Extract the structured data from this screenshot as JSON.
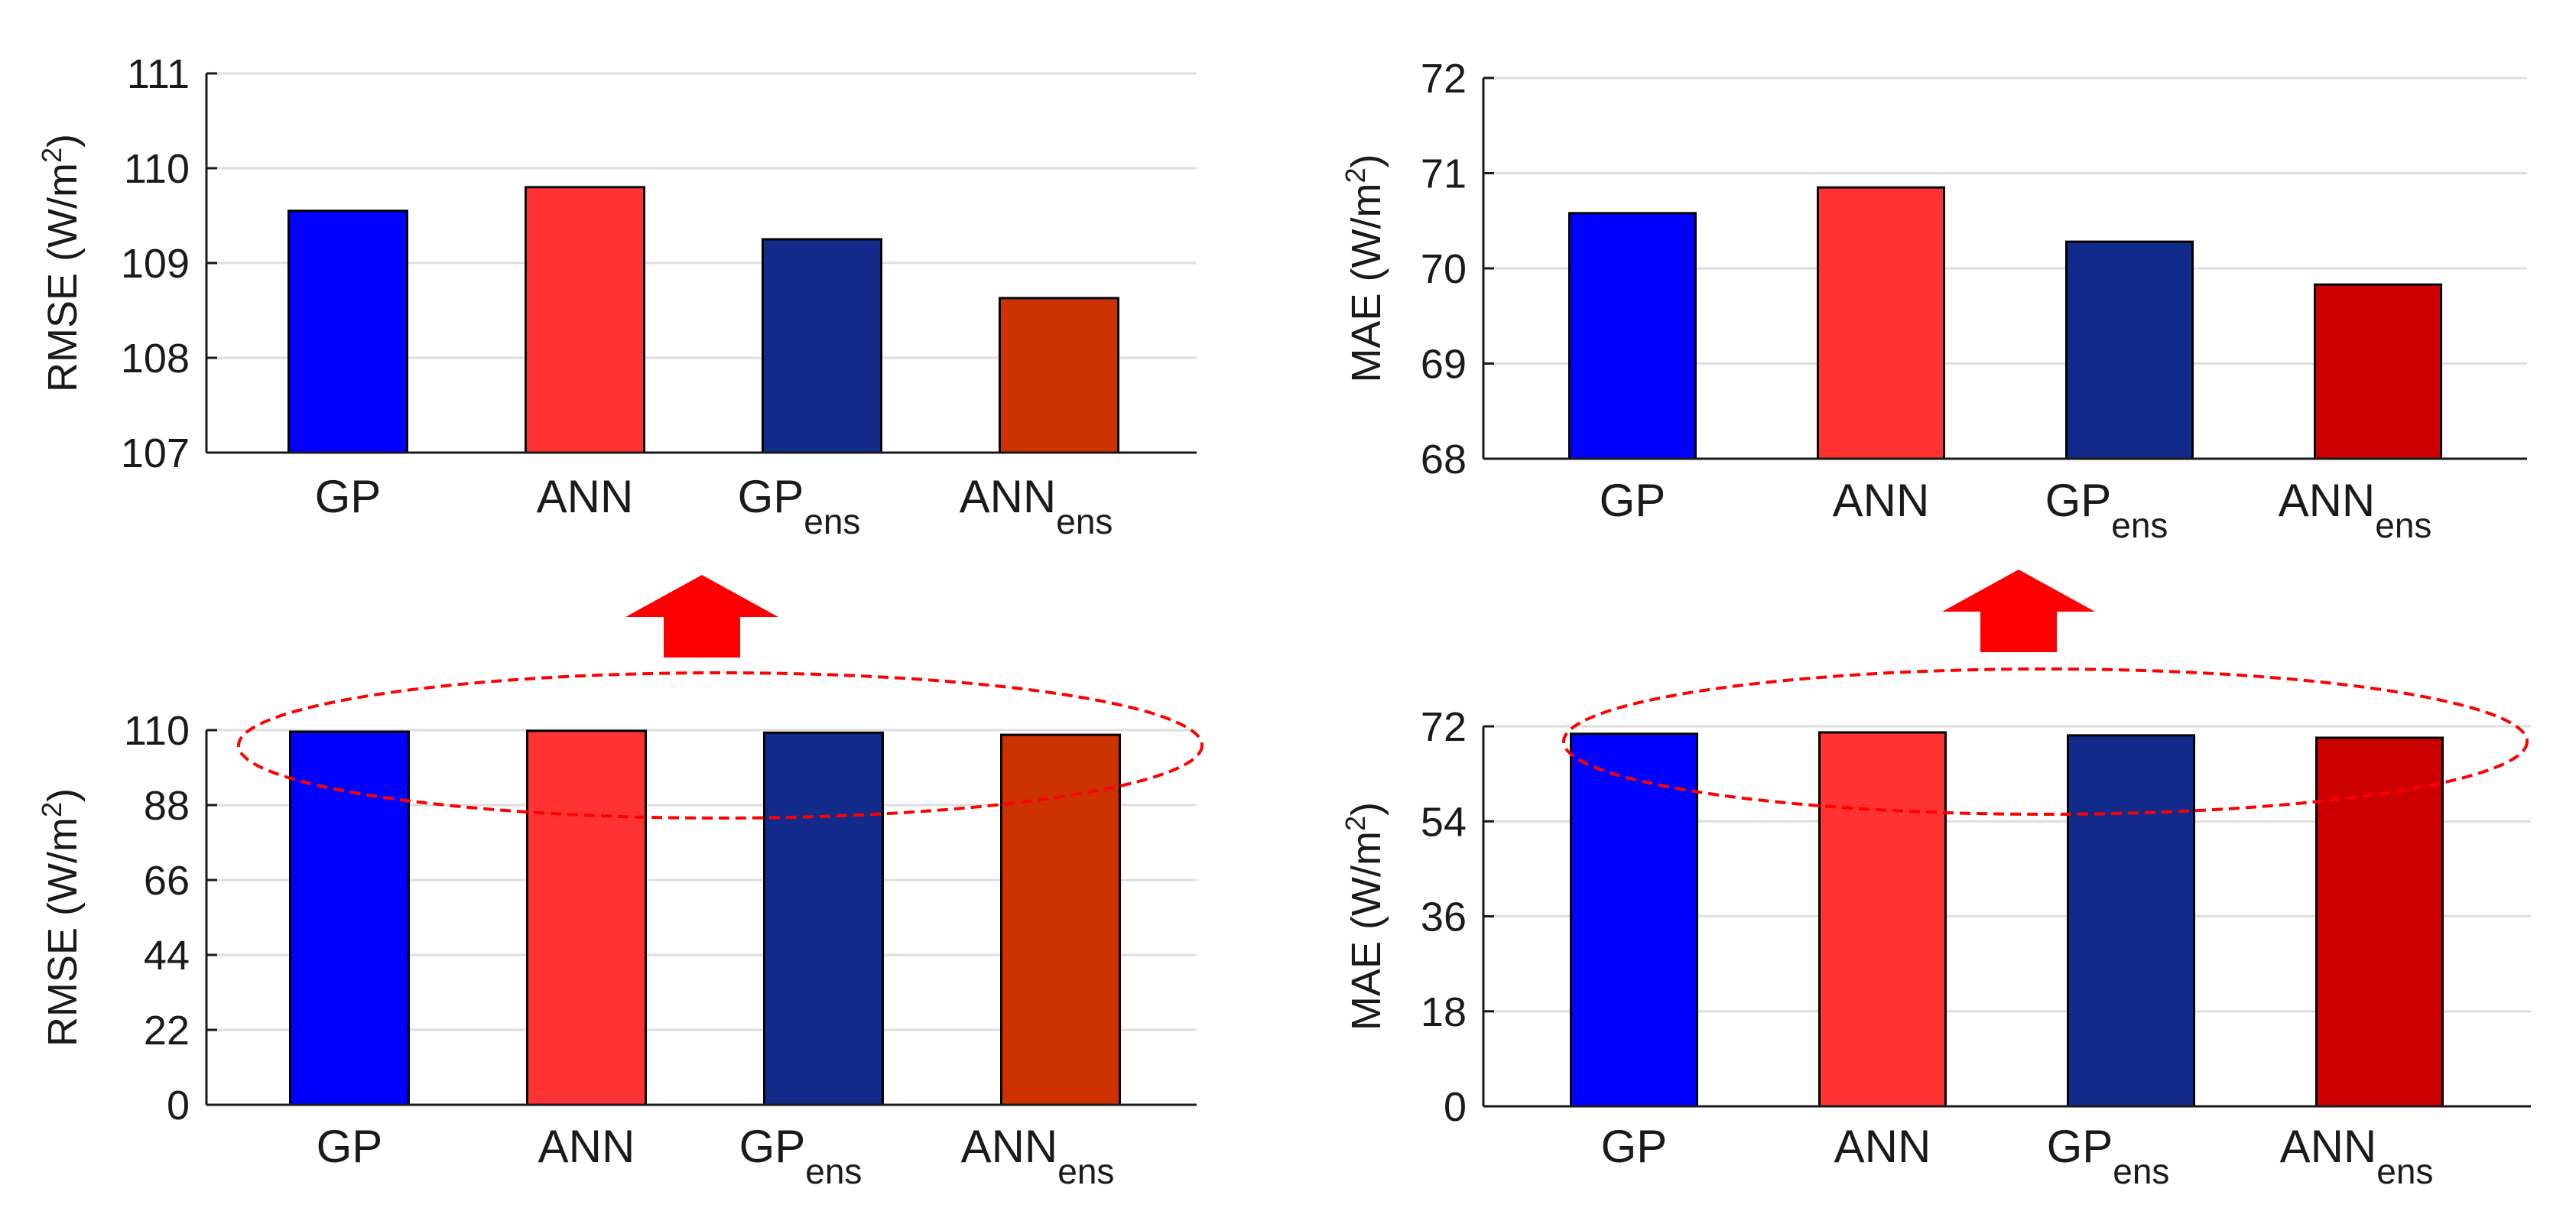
{
  "colors": {
    "gp": "#0000ff",
    "ann": "#ff3333",
    "gp_ens": "#122a8a",
    "ann_ens_left": "#cc3300",
    "ann_ens_right": "#cc0000",
    "grid": "#dedede",
    "arrow": "#ff0000",
    "ellipse": "#ff0000"
  },
  "categories": [
    {
      "main": "GP",
      "sub": ""
    },
    {
      "main": "ANN",
      "sub": ""
    },
    {
      "main": "GP",
      "sub": "ens"
    },
    {
      "main": "ANN",
      "sub": "ens"
    }
  ],
  "chart_data": [
    {
      "id": "rmse-zoomed",
      "type": "bar",
      "ylabel_main": "RMSE (W/m",
      "ylabel_sup": "2",
      "ylabel_tail": ")",
      "ylim": [
        107,
        111
      ],
      "yticks": [
        107,
        108,
        109,
        110,
        111
      ],
      "values": [
        109.55,
        109.8,
        109.25,
        108.63
      ],
      "grid": true
    },
    {
      "id": "mae-zoomed",
      "type": "bar",
      "ylabel_main": "MAE (W/m",
      "ylabel_sup": "2",
      "ylabel_tail": ")",
      "ylim": [
        68,
        72
      ],
      "yticks": [
        68,
        69,
        70,
        71,
        72
      ],
      "values": [
        70.58,
        70.85,
        70.28,
        69.83
      ],
      "grid": true
    },
    {
      "id": "rmse-full",
      "type": "bar",
      "ylabel_main": "RMSE (W/m",
      "ylabel_sup": "2",
      "ylabel_tail": ")",
      "ylim": [
        0,
        110
      ],
      "yticks": [
        0,
        22,
        44,
        66,
        88,
        110
      ],
      "values": [
        109.55,
        109.8,
        109.25,
        108.63
      ],
      "grid": true
    },
    {
      "id": "mae-full",
      "type": "bar",
      "ylabel_main": "MAE (W/m",
      "ylabel_sup": "2",
      "ylabel_tail": ")",
      "ylim": [
        0,
        72
      ],
      "yticks": [
        0,
        18,
        36,
        54,
        72
      ],
      "values": [
        70.58,
        70.85,
        70.28,
        69.83
      ],
      "grid": true
    }
  ]
}
